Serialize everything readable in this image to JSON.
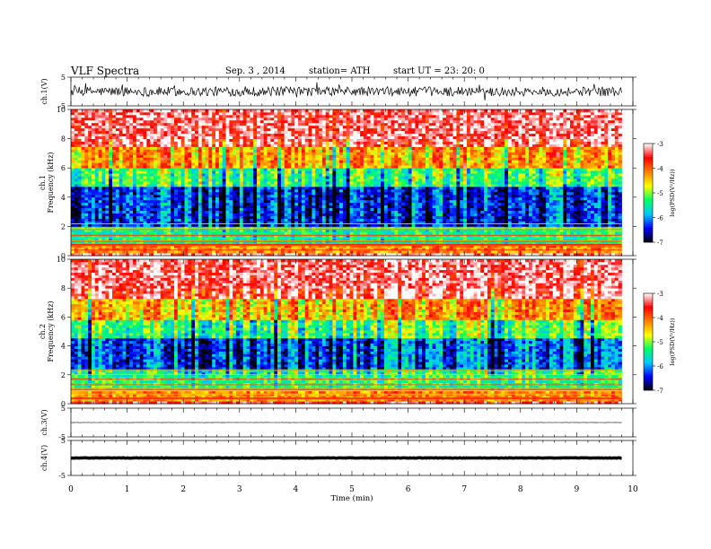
{
  "header": {
    "title": "VLF  Spectra",
    "date": "Sep. 3  , 2014",
    "station": "station= ATH",
    "start": "start  UT  =    23: 20: 0"
  },
  "chart_data": [
    {
      "type": "line",
      "panel": "ch1-waveform",
      "ylabel": "ch.1(V)",
      "ylim": [
        -5,
        5
      ],
      "y_ticks": [
        "5",
        "-5"
      ],
      "x_extent_min": 9.8,
      "description_values": {
        "center": 0,
        "amplitude_peak": 3
      }
    },
    {
      "type": "heatmap",
      "panel": "ch1-spectrogram",
      "ylabel": "ch.1\nFrequency  (kHz)",
      "ylabel_lines": [
        "ch.1",
        "Frequency  (kHz)"
      ],
      "ylim": [
        0,
        10
      ],
      "y_ticks": [
        "0",
        "2",
        "4",
        "6",
        "8",
        "10"
      ],
      "x_extent_min": 9.8,
      "colorbar": {
        "label": "log(PSD(V²/Hz))",
        "range": [
          -7,
          -3
        ],
        "ticks": [
          "-3",
          "-4",
          "-5",
          "-6",
          "-7"
        ],
        "colors": [
          "#000000",
          "#0000ff",
          "#00c8ff",
          "#00ff64",
          "#ffff00",
          "#ff8000",
          "#ff0000",
          "#ffffff"
        ]
      },
      "bands_khz": [
        {
          "range": [
            0,
            0.2
          ],
          "level": -3.2
        },
        {
          "range": [
            0.2,
            0.8
          ],
          "level": -4.2
        },
        {
          "range": [
            0.8,
            2.0
          ],
          "level": -5.4
        },
        {
          "range": [
            2.0,
            4.8
          ],
          "level": -6.3
        },
        {
          "range": [
            4.8,
            6.0
          ],
          "level": -5.2
        },
        {
          "range": [
            6.0,
            7.5
          ],
          "level": -4.2
        },
        {
          "range": [
            7.5,
            10.0
          ],
          "level": -3.3
        }
      ]
    },
    {
      "type": "heatmap",
      "panel": "ch2-spectrogram",
      "ylabel": "ch.2\nFrequency  (kHz)",
      "ylabel_lines": [
        "ch.2",
        "Frequency  (kHz)"
      ],
      "ylim": [
        0,
        10
      ],
      "y_ticks": [
        "0",
        "2",
        "4",
        "6",
        "8",
        "10"
      ],
      "x_extent_min": 9.8,
      "colorbar": {
        "label": "log(PSD(V²/Hz))",
        "range": [
          -7,
          -3
        ],
        "ticks": [
          "-3",
          "-4",
          "-5",
          "-6",
          "-7"
        ],
        "colors": [
          "#000000",
          "#0000ff",
          "#00c8ff",
          "#00ff64",
          "#ffff00",
          "#ff8000",
          "#ff0000",
          "#ffffff"
        ]
      },
      "bands_khz": [
        {
          "range": [
            0,
            0.2
          ],
          "level": -3.4
        },
        {
          "range": [
            0.2,
            1.0
          ],
          "level": -4.2
        },
        {
          "range": [
            1.0,
            2.4
          ],
          "level": -5.3
        },
        {
          "range": [
            2.4,
            4.5
          ],
          "level": -6.2
        },
        {
          "range": [
            4.5,
            5.8
          ],
          "level": -5.2
        },
        {
          "range": [
            5.8,
            7.3
          ],
          "level": -4.3
        },
        {
          "range": [
            7.3,
            10.0
          ],
          "level": -3.3
        }
      ]
    },
    {
      "type": "line",
      "panel": "ch3-waveform",
      "ylabel": "ch.3(V)",
      "ylim": [
        -5,
        5
      ],
      "y_ticks": [
        "5",
        "-5"
      ],
      "x_extent_min": 9.8,
      "description_values": {
        "center": 0,
        "amplitude_peak": 0.1
      }
    },
    {
      "type": "line",
      "panel": "ch4-waveform",
      "ylabel": "ch.4(V)",
      "ylim": [
        -5,
        5
      ],
      "y_ticks": [
        "5",
        "-5"
      ],
      "x_extent_min": 9.8,
      "description_values": {
        "center": 0,
        "amplitude_peak": 0.1
      }
    }
  ],
  "xaxis": {
    "label": "Time  (min)",
    "range": [
      0,
      10
    ],
    "ticks": [
      "0",
      "1",
      "2",
      "3",
      "4",
      "5",
      "6",
      "7",
      "8",
      "9",
      "10"
    ]
  }
}
